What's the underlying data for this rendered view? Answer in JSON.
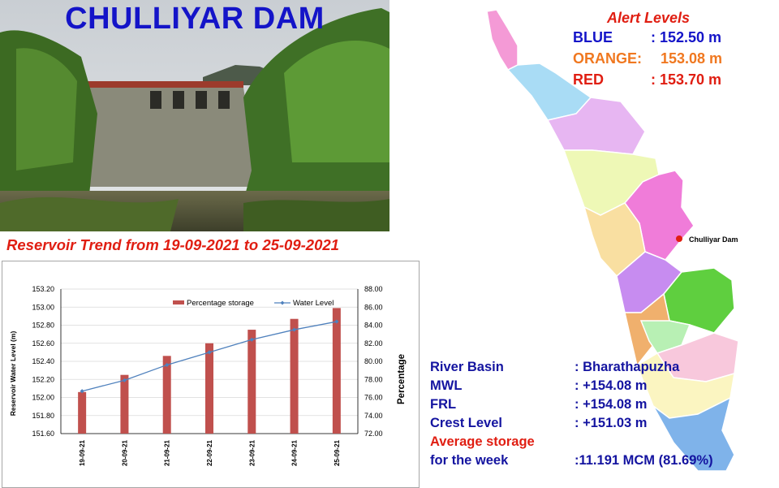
{
  "header": {
    "dam_name": "CHULLIYAR DAM",
    "trend_title": "Reservoir Trend from 19-09-2021 to 25-09-2021"
  },
  "alerts": {
    "title": "Alert Levels",
    "levels": [
      {
        "name": "BLUE",
        "value": ": 152.50 m",
        "color": "#1414c8"
      },
      {
        "name": "ORANGE:",
        "value": "153.08 m",
        "color": "#f07820"
      },
      {
        "name": "RED",
        "value": ": 153.70 m",
        "color": "#e01e12"
      }
    ]
  },
  "map": {
    "marker_label": "Chulliyar Dam",
    "marker_color": "#e01e12"
  },
  "info": {
    "river_basin_label": "River Basin",
    "river_basin_value": ": Bharathapuzha",
    "mwl_label": "MWL",
    "mwl_value": ": +154.08 m",
    "frl_label": "FRL",
    "frl_value": ": +154.08 m",
    "crest_label": "Crest Level",
    "crest_value": ": +151.03 m",
    "storage_label_1": "Average storage",
    "storage_label_2": "for the week",
    "storage_value": ":11.191 MCM (81.69%)"
  },
  "chart_data": {
    "type": "bar",
    "categories": [
      "19-09-21",
      "20-09-21",
      "21-09-21",
      "22-09-21",
      "23-09-21",
      "24-09-21",
      "25-09-21"
    ],
    "series": [
      {
        "name": "Percentage storage",
        "type": "bar",
        "axis": "right",
        "values": [
          76.6,
          78.5,
          80.6,
          82.0,
          83.5,
          84.7,
          85.9
        ],
        "color": "#c0504d"
      },
      {
        "name": "Water Level",
        "type": "line",
        "axis": "left",
        "values": [
          152.07,
          152.19,
          152.36,
          152.5,
          152.64,
          152.75,
          152.84
        ],
        "color": "#4f81bd"
      }
    ],
    "ylabel": "Reservoir Water Level (m)",
    "y2label": "Percentage",
    "ylim": [
      151.6,
      153.2
    ],
    "yticks": [
      "151.60",
      "151.80",
      "152.00",
      "152.20",
      "152.40",
      "152.60",
      "152.80",
      "153.00",
      "153.20"
    ],
    "y2lim": [
      72,
      88
    ],
    "y2ticks": [
      "72.00",
      "74.00",
      "76.00",
      "78.00",
      "80.00",
      "82.00",
      "84.00",
      "86.00",
      "88.00"
    ],
    "grid": true,
    "legend": "top-right"
  }
}
